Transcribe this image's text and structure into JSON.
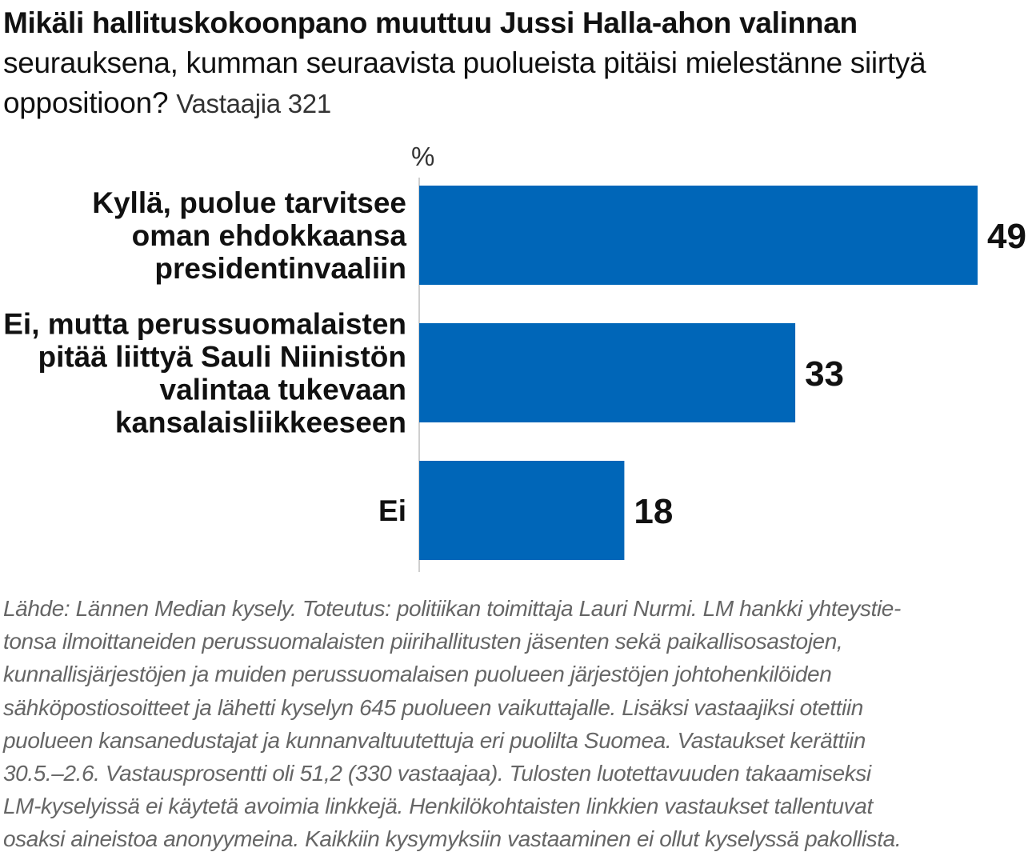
{
  "header": {
    "title": "Mikäli hallituskokoonpano muuttuu Jussi Halla-ahon valinnan",
    "question": "seurauksena, kumman seuraavista puolueista pitäisi mielestänne siirtyä oppositioon?",
    "respondents": "Vastaajia 321"
  },
  "chart_data": {
    "type": "bar",
    "orientation": "horizontal",
    "unit_label": "%",
    "categories": [
      [
        "Kyllä, puolue tarvitsee",
        "oman ehdokkaansa",
        "presidentinvaaliin"
      ],
      [
        "Ei, mutta perussuomalaisten",
        "pitää liittyä Sauli Niinistön",
        "valintaa tukevaan",
        "kansalaisliikkeeseen"
      ],
      [
        "Ei"
      ]
    ],
    "values": [
      49,
      33,
      18
    ],
    "value_labels": [
      "49",
      "33",
      "18"
    ],
    "xlim": [
      0,
      49
    ],
    "bar_color": "#0066b8",
    "grid": false,
    "legend": "none"
  },
  "footer": {
    "source_lines": [
      "Lähde: Lännen Median kysely. Toteutus: politiikan toimittaja Lauri Nurmi. LM hankki yhteystie-",
      "tonsa ilmoittaneiden perussuomalaisten piirihallitusten jäsenten sekä paikallisosastojen,",
      "kunnallisjärjestöjen ja muiden perussuomalaisen puolueen järjestöjen johtohenkilöiden",
      "sähköpostiosoitteet ja lähetti kyselyn 645 puolueen vaikuttajalle. Lisäksi vastaajiksi otettiin",
      "puolueen kansanedustajat ja kunnanvaltuutettuja eri puolilta Suomea. Vastaukset kerättiin",
      "30.5.–2.6. Vastausprosentti oli 51,2 (330 vastaajaa). Tulosten luotettavuuden takaamiseksi",
      "LM-kyselyissä ei käytetä avoimia linkkejä. Henkilökohtaisten linkkien vastaukset tallentuvat",
      "osaksi aineistoa anonyymeina. Kaikkiin kysymyksiin vastaaminen ei ollut kyselyssä pakollista."
    ]
  }
}
